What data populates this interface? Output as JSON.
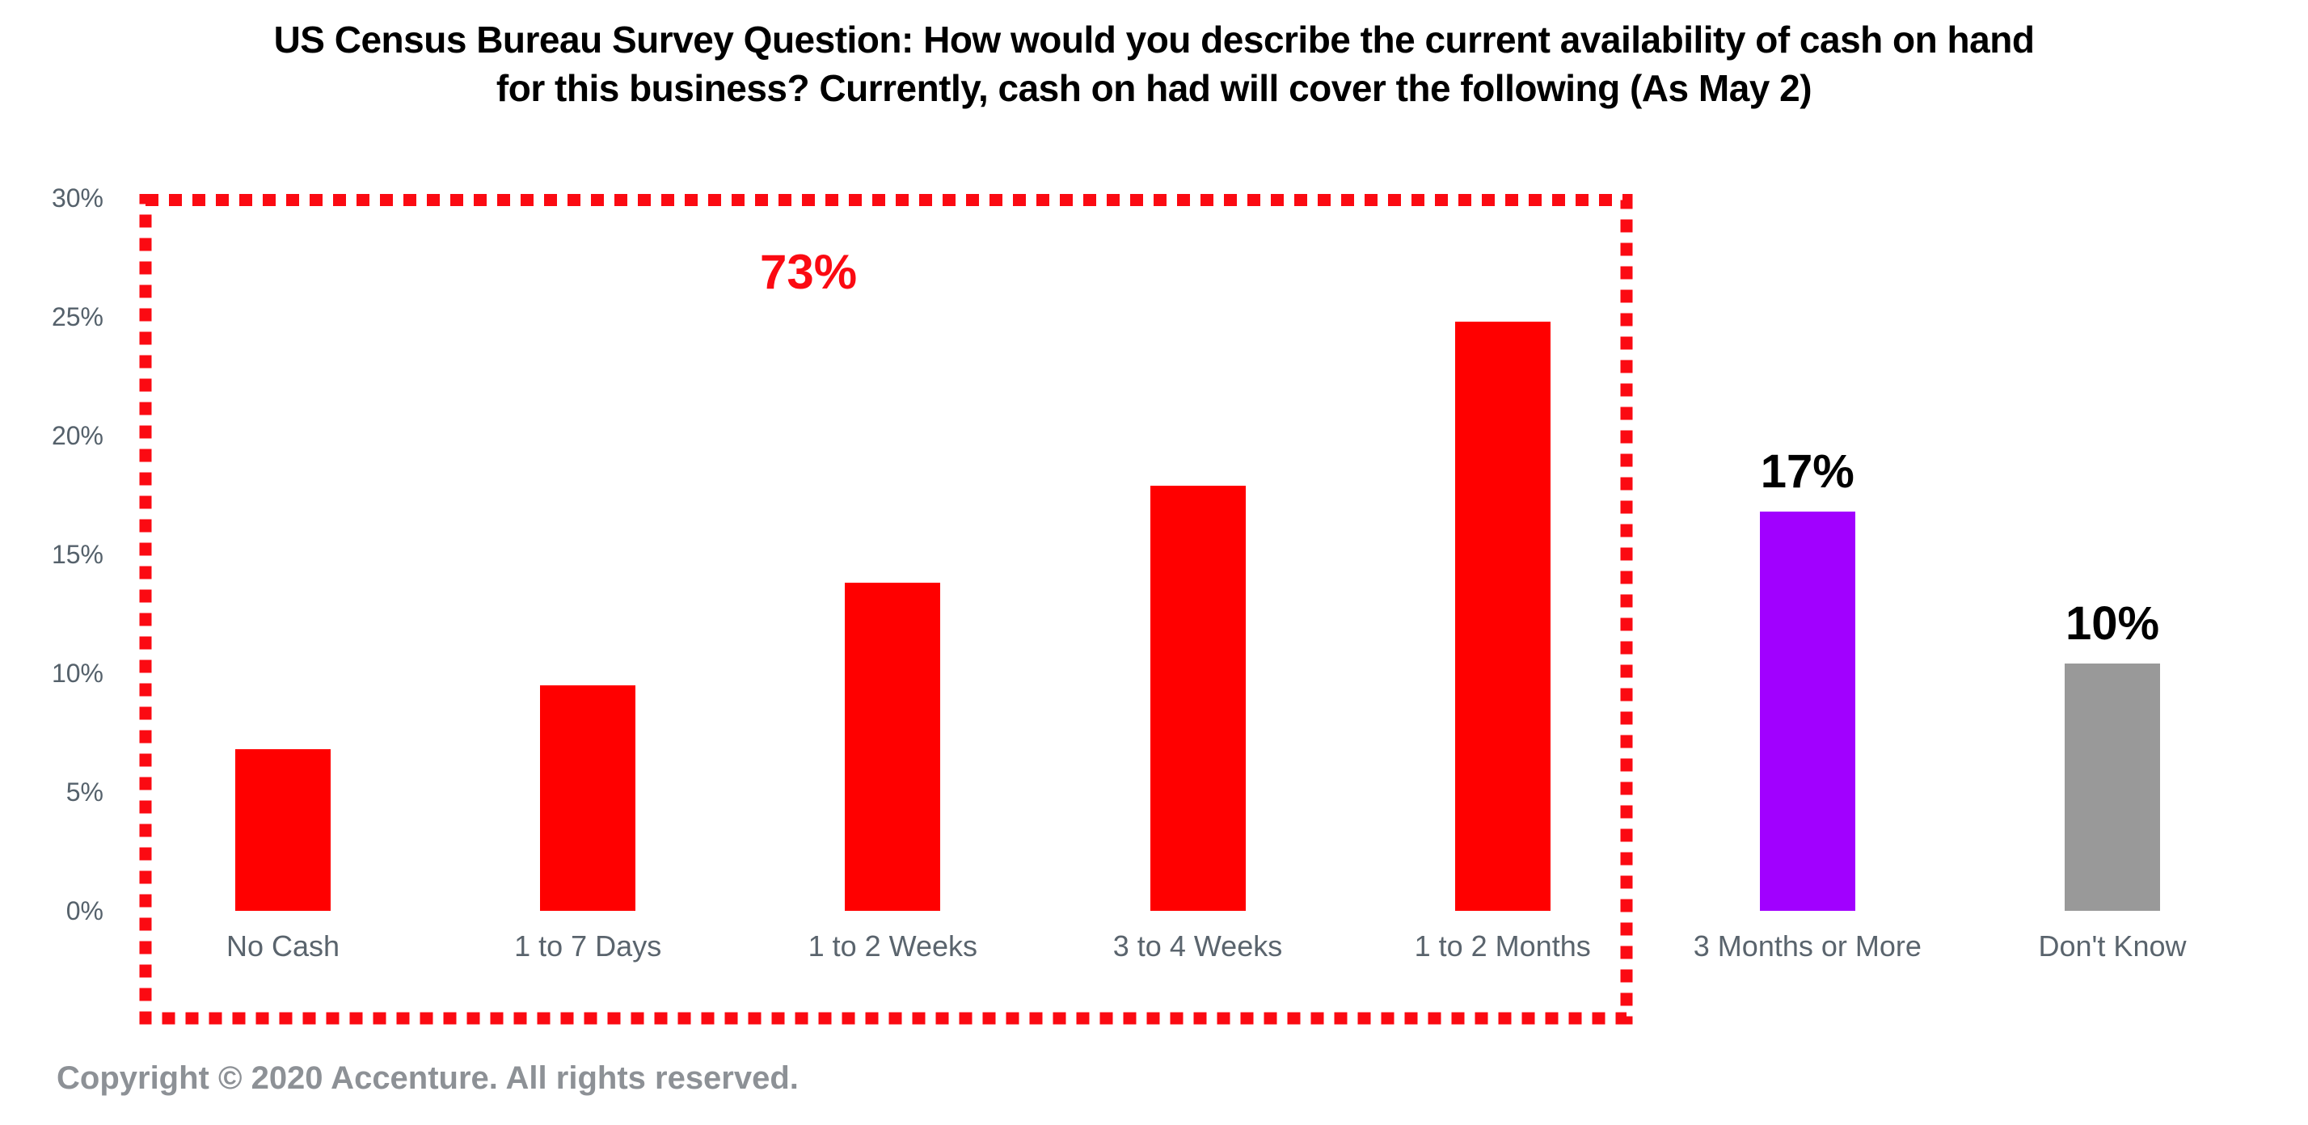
{
  "chart_data": {
    "type": "bar",
    "title": "US Census Bureau Survey Question: How would you describe the current availability of cash on hand for this business? Currently, cash on had will cover the following (As May 2)",
    "title_lines": [
      "US Census Bureau Survey Question: How would you describe the current availability of cash on hand",
      "for this business? Currently, cash on had will cover the following (As May 2)"
    ],
    "categories": [
      "No Cash",
      "1 to 7 Days",
      "1 to 2 Weeks",
      "3 to 4 Weeks",
      "1 to 2 Months",
      "3 Months or More",
      "Don't Know"
    ],
    "values": [
      6.8,
      9.5,
      13.8,
      17.9,
      24.8,
      16.8,
      10.4
    ],
    "bar_colors": [
      "#ff0000",
      "#ff0000",
      "#ff0000",
      "#ff0000",
      "#ff0000",
      "#a100ff",
      "#999999"
    ],
    "value_labels": [
      "",
      "",
      "",
      "",
      "",
      "17%",
      "10%"
    ],
    "xlabel": "",
    "ylabel": "",
    "ylim": [
      0,
      30
    ],
    "yticks": [
      "0%",
      "5%",
      "10%",
      "15%",
      "20%",
      "25%",
      "30%"
    ],
    "grid": false,
    "legend": "none",
    "annotations": {
      "group_callout": {
        "text": "73%",
        "color": "#fb0a12",
        "covers_categories": [
          "No Cash",
          "1 to 7 Days",
          "1 to 2 Weeks",
          "3 to 4 Weeks",
          "1 to 2 Months"
        ]
      }
    },
    "highlight_box": {
      "style": "dashed",
      "color": "#fb0a12"
    },
    "colors": {
      "axis_label": "#55616b",
      "category_label": "#5a646d",
      "title": "#000000",
      "value_label": "#000000"
    }
  },
  "footer": {
    "copyright": "Copyright © 2020 Accenture. All rights reserved."
  }
}
